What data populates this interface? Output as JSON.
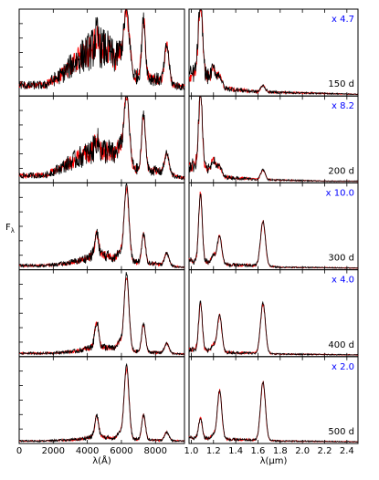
{
  "chart_data": {
    "type": "line",
    "y_label": "F",
    "y_label_subscript": "λ",
    "colors": {
      "series_a": "#ff0000",
      "series_b": "#000000",
      "scale_factor": "#0000ff",
      "frame": "#000000"
    },
    "left_column": {
      "xlabel": "λ(Å)",
      "xlim": [
        0,
        9700
      ],
      "ticks": [
        0,
        2000,
        4000,
        6000,
        8000
      ],
      "tick_labels": [
        "0",
        "2000",
        "4000",
        "6000",
        "8000"
      ]
    },
    "right_column": {
      "xlabel": "λ(μm)",
      "xlim": [
        0.98,
        2.5
      ],
      "ticks": [
        1.0,
        1.2,
        1.4,
        1.6,
        1.8,
        2.0,
        2.2,
        2.4
      ],
      "tick_labels": [
        "1.0",
        "1.2",
        "1.4",
        "1.6",
        "1.8",
        "2.0",
        "2.2",
        "2.4"
      ]
    },
    "panels": [
      {
        "epoch": "150 d",
        "scale": "x 4.7",
        "optical": {
          "cont": [
            [
              1500,
              0.12
            ],
            [
              2500,
              0.25
            ],
            [
              3500,
              0.45
            ],
            [
              4500,
              0.6
            ],
            [
              5200,
              0.55
            ],
            [
              5800,
              0.4
            ],
            [
              6200,
              0.3
            ],
            [
              7000,
              0.22
            ],
            [
              8000,
              0.2
            ],
            [
              9500,
              0.1
            ]
          ],
          "lines": [
            [
              6300,
              160,
              0.75
            ],
            [
              7300,
              110,
              0.72
            ],
            [
              8660,
              130,
              0.45
            ],
            [
              5890,
              120,
              0.15
            ],
            [
              4550,
              100,
              0.12
            ]
          ]
        },
        "nir": {
          "cont": [
            [
              1.0,
              0.25
            ],
            [
              1.05,
              0.3
            ],
            [
              1.15,
              0.22
            ],
            [
              1.3,
              0.08
            ],
            [
              1.6,
              0.04
            ],
            [
              2.2,
              0.02
            ],
            [
              2.5,
              0.01
            ]
          ],
          "lines": [
            [
              1.083,
              0.018,
              0.9
            ],
            [
              1.2,
              0.02,
              0.15
            ],
            [
              1.255,
              0.02,
              0.12
            ],
            [
              1.645,
              0.02,
              0.08
            ]
          ]
        }
      },
      {
        "epoch": "200 d",
        "scale": "x 8.2",
        "optical": {
          "cont": [
            [
              1500,
              0.08
            ],
            [
              2500,
              0.18
            ],
            [
              3500,
              0.3
            ],
            [
              4500,
              0.4
            ],
            [
              5200,
              0.38
            ],
            [
              5800,
              0.3
            ],
            [
              6200,
              0.22
            ],
            [
              7000,
              0.15
            ],
            [
              8000,
              0.14
            ],
            [
              9500,
              0.05
            ]
          ],
          "lines": [
            [
              6300,
              150,
              0.9
            ],
            [
              7300,
              110,
              0.7
            ],
            [
              8660,
              130,
              0.25
            ],
            [
              5890,
              120,
              0.15
            ],
            [
              4550,
              100,
              0.12
            ]
          ]
        },
        "nir": {
          "cont": [
            [
              1.0,
              0.2
            ],
            [
              1.05,
              0.22
            ],
            [
              1.15,
              0.15
            ],
            [
              1.3,
              0.06
            ],
            [
              1.6,
              0.03
            ],
            [
              2.2,
              0.01
            ],
            [
              2.5,
              0.01
            ]
          ],
          "lines": [
            [
              1.083,
              0.016,
              0.95
            ],
            [
              1.2,
              0.02,
              0.15
            ],
            [
              1.255,
              0.02,
              0.1
            ],
            [
              1.645,
              0.02,
              0.12
            ]
          ]
        }
      },
      {
        "epoch": "300 d",
        "scale": "x 10.0",
        "optical": {
          "cont": [
            [
              1500,
              0.04
            ],
            [
              2500,
              0.06
            ],
            [
              3500,
              0.1
            ],
            [
              4500,
              0.18
            ],
            [
              5200,
              0.16
            ],
            [
              5800,
              0.12
            ],
            [
              6200,
              0.1
            ],
            [
              7000,
              0.08
            ],
            [
              8000,
              0.06
            ],
            [
              9500,
              0.02
            ]
          ],
          "lines": [
            [
              6300,
              140,
              0.95
            ],
            [
              7300,
              110,
              0.35
            ],
            [
              8660,
              130,
              0.15
            ],
            [
              4550,
              110,
              0.25
            ],
            [
              5890,
              120,
              0.1
            ]
          ]
        },
        "nir": {
          "cont": [
            [
              1.0,
              0.1
            ],
            [
              1.15,
              0.08
            ],
            [
              1.3,
              0.05
            ],
            [
              1.6,
              0.04
            ],
            [
              1.8,
              0.02
            ],
            [
              2.5,
              0.01
            ]
          ],
          "lines": [
            [
              1.083,
              0.016,
              0.85
            ],
            [
              1.255,
              0.02,
              0.35
            ],
            [
              1.645,
              0.022,
              0.55
            ],
            [
              1.2,
              0.02,
              0.1
            ]
          ]
        }
      },
      {
        "epoch": "400 d",
        "scale": "x 4.0",
        "optical": {
          "cont": [
            [
              1500,
              0.03
            ],
            [
              2500,
              0.04
            ],
            [
              3500,
              0.06
            ],
            [
              4500,
              0.12
            ],
            [
              5200,
              0.1
            ],
            [
              5800,
              0.08
            ],
            [
              6200,
              0.06
            ],
            [
              7000,
              0.05
            ],
            [
              8000,
              0.04
            ],
            [
              9500,
              0.02
            ]
          ],
          "lines": [
            [
              6300,
              140,
              0.95
            ],
            [
              7300,
              110,
              0.35
            ],
            [
              8660,
              130,
              0.12
            ],
            [
              4550,
              110,
              0.3
            ],
            [
              5890,
              120,
              0.1
            ]
          ]
        },
        "nir": {
          "cont": [
            [
              1.0,
              0.08
            ],
            [
              1.15,
              0.06
            ],
            [
              1.3,
              0.04
            ],
            [
              1.6,
              0.03
            ],
            [
              1.8,
              0.02
            ],
            [
              2.5,
              0.01
            ]
          ],
          "lines": [
            [
              1.083,
              0.016,
              0.6
            ],
            [
              1.255,
              0.02,
              0.45
            ],
            [
              1.645,
              0.022,
              0.62
            ],
            [
              1.2,
              0.02,
              0.08
            ]
          ]
        }
      },
      {
        "epoch": "500 d",
        "scale": "x 2.0",
        "optical": {
          "cont": [
            [
              1500,
              0.02
            ],
            [
              2500,
              0.03
            ],
            [
              3500,
              0.04
            ],
            [
              4500,
              0.08
            ],
            [
              5200,
              0.06
            ],
            [
              5800,
              0.05
            ],
            [
              6200,
              0.04
            ],
            [
              7000,
              0.04
            ],
            [
              8000,
              0.03
            ],
            [
              9500,
              0.02
            ]
          ],
          "lines": [
            [
              6300,
              140,
              0.92
            ],
            [
              7300,
              110,
              0.3
            ],
            [
              8660,
              130,
              0.1
            ],
            [
              4550,
              110,
              0.25
            ],
            [
              5890,
              120,
              0.08
            ]
          ]
        },
        "nir": {
          "cont": [
            [
              1.0,
              0.06
            ],
            [
              1.15,
              0.05
            ],
            [
              1.3,
              0.04
            ],
            [
              1.6,
              0.03
            ],
            [
              1.8,
              0.02
            ],
            [
              2.5,
              0.01
            ]
          ],
          "lines": [
            [
              1.083,
              0.016,
              0.25
            ],
            [
              1.255,
              0.02,
              0.6
            ],
            [
              1.645,
              0.022,
              0.72
            ],
            [
              1.2,
              0.02,
              0.05
            ]
          ]
        }
      }
    ]
  }
}
